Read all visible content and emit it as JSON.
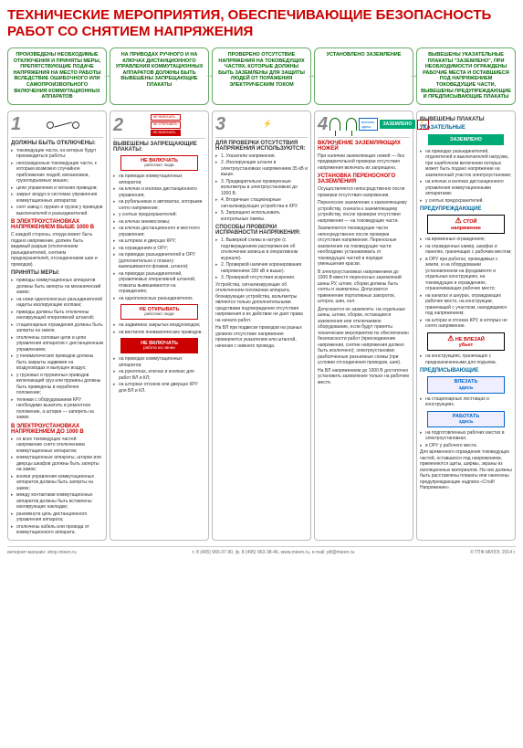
{
  "title": "ТЕХНИЧЕСКИЕ МЕРОПРИЯТИЯ, ОБЕСПЕЧИВАЮЩИЕ БЕЗОПАСНОСТЬ РАБОТ СО СНЯТИЕМ НАПРЯЖЕНИЯ",
  "top": [
    "ПРОИЗВЕДЕНЫ НЕОБХОДИМЫЕ ОТКЛЮЧЕНИЯ И ПРИНЯТЫ МЕРЫ, ПРЕПЯТСТВУЮЩИЕ ПОДАЧЕ НАПРЯЖЕНИЯ НА МЕСТО РАБОТЫ ВСЛЕДСТВИЕ ОШИБОЧНОГО ИЛИ САМОПРОИЗВОЛЬНОГО ВКЛЮЧЕНИЯ КОММУТАЦИОННЫХ АППАРАТОВ",
    "НА ПРИВОДАХ РУЧНОГО И НА КЛЮЧАХ ДИСТАНЦИОННОГО УПРАВЛЕНИЯ КОММУТАЦИОННЫХ АППАРАТОВ ДОЛЖНЫ БЫТЬ ВЫВЕШЕНЫ ЗАПРЕЩАЮЩИЕ ПЛАКАТЫ",
    "ПРОВЕРЕНО ОТСУТСТВИЕ НАПРЯЖЕНИЯ НА ТОКОВЕДУЩИХ ЧАСТЯХ, КОТОРЫЕ ДОЛЖНЫ БЫТЬ ЗАЗЕМЛЕНЫ ДЛЯ ЗАЩИТЫ ЛЮДЕЙ ОТ ПОРАЖЕНИЯ ЭЛЕКТРИЧЕСКИМ ТОКОМ",
    "УСТАНОВЛЕНО ЗАЗЕМЛЕНИЕ",
    "ВЫВЕШЕНЫ УКАЗАТЕЛЬНЫЕ ПЛАКАТЫ \"ЗАЗЕМЛЕНО\", ПРИ НЕОБХОДИМОСТИ ОГРАЖДЕНЫ РАБОЧИЕ МЕСТА И ОСТАВШИЕСЯ ПОД НАПРЯЖЕНИЕМ ТОКОВЕДУЩИЕ ЧАСТИ, ВЫВЕШЕНЫ ПРЕДУПРЕЖДАЮЩИЕ И ПРЕДПИСЫВАЮЩИЕ ПЛАКАТЫ"
  ],
  "c1": {
    "h1": "ДОЛЖНЫ БЫТЬ ОТКЛЮЧЕНЫ:",
    "l1": [
      "токоведущие части, на которых будут производиться работы;",
      "неогражденные токоведущие части, к которым возможно случайное приближение людей, механизмов, грузоподъемных машин;",
      "цепи управления и питания приводов;",
      "закрыт воздух в системах управления коммутационных аппаратов;",
      "снят завод с пружин и грузов у приводов выключателей и разъединителей."
    ],
    "h2": "В ЭЛЕКТРОУСТАНОВКАХ НАПРЯЖЕНИЕМ ВЫШЕ 1000 В",
    "p1": "С каждой стороны, откуда может быть подано напряжение, должен быть видимый разрыв (отключением разъединителей, снятием предохранителей, отсоединением шин и проводов).",
    "h3": "ПРИНЯТЫ МЕРЫ:",
    "l2": [
      "приводы коммутационных аппаратов должны быть заперты на механический замок;",
      "на ножи однополюсных разъединителей надеты изолирующие колпаки;",
      "приводы должны быть отключены изолирующей оперативной штангой;",
      "стационарные ограждения должны быть заперты на замок;",
      "отключены силовые цепи и цепи управления аппаратов с дистанционным управлением;",
      "у пневматических приводов должны быть закрыты задвижки на воздуховодах и выпущен воздух;",
      "у грузовых и пружинных приводов включающий груз или пружины должны быть приведены в нерабочее положение;",
      "тележки с оборудованием КРУ необходимо выкатить в ремонтное положение, а шторки — запереть на замок."
    ],
    "h4": "В ЭЛЕКТРОУСТАНОВКАХ НАПРЯЖЕНИЕМ ДО 1000 В",
    "l3": [
      "со всех токоведущих частей напряжение снято отключением коммутационных аппаратов;",
      "коммутационные аппараты, шторки или дверцы шкафов должны быть заперты на замок;",
      "кнопки управления коммутационных аппаратов должны быть заперты на замок;",
      "между контактами коммутационных аппаратов должны быть вставлены изолирующие накладки;",
      "разомкнута цепь дистанционного управления аппарата;",
      "отключены кабель или провода от коммутационного аппарата."
    ]
  },
  "c2": {
    "h1": "ВЫВЕШЕНЫ ЗАПРЕЩАЮЩИЕ ПЛАКАТЫ:",
    "s1": "НЕ ВКЛЮЧАТЬ",
    "s1s": "работают люди",
    "l1": [
      "на приводах коммутационных аппаратов;",
      "на ключах и кнопках дистанционного управления;",
      "на рубильниках и автоматах, которыми снято напряжение;",
      "у снятых предохранителей;",
      "на ключах мнемосхемы;",
      "на ключах дистанционного и местного управления;",
      "на шторках и дверцах КРУ;",
      "на ограждениях в ОРУ;",
      "на приводах разъединителей в ОРУ (дополнительно к плакату вывешиваются флажки, штанги);",
      "на приводах разъединителей, управляемых оперативной штангой, плакаты вывешиваются на ограждениях;",
      "на однополюсных разъединителях."
    ],
    "s2": "НЕ ОТКРЫВАТЬ",
    "s2s": "работают люди",
    "l2": [
      "на задвижках закрытых воздуховодов;",
      "на вентилях пневматических приводов."
    ],
    "s3": "НЕ ВКЛЮЧАТЬ",
    "s3s": "работа на линии",
    "l3": [
      "на приводах коммутационных аппаратов;",
      "на рукоятках, ключах и кнопках для работ ВЛ и КЛ;",
      "на шторках отсеков или дверцах КРУ для ВЛ и КЛ."
    ]
  },
  "c3": {
    "h1": "ДЛЯ ПРОВЕРКИ ОТСУТСТВИЯ НАПРЯЖЕНИЯ ИСПОЛЬЗУЮТСЯ:",
    "l1": [
      "1. Указатели напряжения.",
      "2. Изолирующие штанги в электроустановках напряжением 35 кВ и выше.",
      "3. Предварительно проверенные вольтметры в электроустановках до 1000 В.",
      "4. Вторичные стационарные сигнализирующие устройства в КРУ.",
      "5. Запрещено использовать контрольные лампы."
    ],
    "h2": "СПОСОБЫ ПРОВЕРКИ ИСПРАВНОСТИ НАПРЯЖЕНИЯ:",
    "l2": [
      "1. Выверкой схемы в натуре (с подтверждением распоряжения об отключении записью в оперативном журнале).",
      "2. Проверкой наличия коронирования напряжением 330 кВ и выше).",
      "3. Проверкой отсутствия искрения."
    ],
    "p1": "Устройства, сигнализирующие об отключенном положении аппарата, блокирующие устройства, вольтметры являются только дополнительными средствами подтверждения отсутствия напряжения и их действие не дает права на начало работ.",
    "p2": "На ВЛ при подвеске проводов на разных уровнях отсутствие напряжения проверяется указателем или штангой, начиная с нижнего провода."
  },
  "c4": {
    "h1": "ВКЛЮЧЕНИЕ ЗАЗЕМЛЯЮЩИХ НОЖЕЙ",
    "p1": "При наличии заземляющих ножей — без предварительной проверки отсутствия напряжения включать их запрещено.",
    "h2": "УСТАНОВКА ПЕРЕНОСНОГО ЗАЗЕМЛЕНИЯ",
    "p2": "Осуществляется непосредственно после проверки отсутствия напряжения.",
    "p3": "Переносное заземление к заземляющему устройству, сначала к заземляющему устройству, после проверки отсутствия напряжения — на токоведущие части.",
    "p4": "Заземляются токоведущие части непосредственно после проверки отсутствия напряжения. Переносные заземления на токоведущие части необходимо устанавливать от токоведущих частей в порядке уменьшения краски.",
    "p5": "В электроустановках напряжением до 1000 В вместо переносных заземлений шины РУ, штоки, сборки должны быть сняты и заземлены. Допускается применение портативных закороток, шторок, шин, сил.",
    "p6": "Допускается не заземлять: на отдельные шины, штоки, сборки, остающиеся заземления или отключаемое оборудование, если будут приняты технические мероприятия по обеспечению безопасности работ (присоединение напряжения, снятие напряжения должно быть исключено); электроустановки; разболченные разъемные схемы (при условии отсоединения проводов, шин).",
    "p7": "На ВЛ напряжением до 1000 В достаточно установить заземление только на рабочем месте."
  },
  "c5": {
    "h1": "ВЫВЕШЕНЫ ПЛАКАТЫ",
    "h2": "УКАЗАТЕЛЬНЫЕ",
    "s1": "ЗАЗЕМЛЕНО",
    "l1": [
      "на приводах разъединителей, отделителей и выключателей нагрузки, при ошибочном включении которых может быть подано напряжение на заземленный участок электроустановки;",
      "на ключах и кнопках дистанционного управления коммутационными аппаратами;",
      "у снятых предохранителей."
    ],
    "h3": "ПРЕДУПРЕЖДАЮЩИЕ",
    "s2": "СТОЙ",
    "s2s": "напряжение",
    "l2": [
      "на временных ограждениях;",
      "на огражденных камер, шкафах и панелях, граничащих с рабочим местом;",
      "в ОРУ при работах, проводимых с земли, и на оборудовании установленном на фундаменте и отдельных конструкциях, на токоведущих и ограждениях, ограничивающих рабочее место;",
      "на канатах и шнурах, ограждающих рабочее место, на конструкции, граничащей с участком, находящимся под напряжением;",
      "на шторах в отсеках КРУ, в которых не снято напряжение."
    ],
    "s3": "НЕ ВЛЕЗАЙ",
    "s3s": "убьет",
    "l3": [
      "на конструкциях, граничащих с предназначенными для подъема."
    ],
    "h4": "ПРЕДПИСЫВАЮЩИЕ",
    "s4": "ВЛЕЗАТЬ",
    "s4s": "здесь",
    "l4": [
      "на стационарных лестницах и конструкциях."
    ],
    "s5": "РАБОТАТЬ",
    "s5s": "здесь",
    "l5": [
      "на подготовленных рабочих местах в электроустановках;",
      "в ОРУ у рабочего места."
    ],
    "p1": "Для временного ограждения токоведущих частей, оставшихся под напряжением, применяются щиты, ширмы, экраны из изоляционных материалов. На них должны быть расставлены плакаты или нанесены предупреждающие надписи «Стой! Напряжение»."
  },
  "footer": {
    "l": "интернет-магазин: shop.mieen.ru",
    "c": "т. 8 (495) 965-37-90, ф. 8 (495) 963-38-46, www.mieen.ru, e-mail: ptf@mieen.ru",
    "r": "© ПТФ-МИЭЭ, 2014 г."
  }
}
